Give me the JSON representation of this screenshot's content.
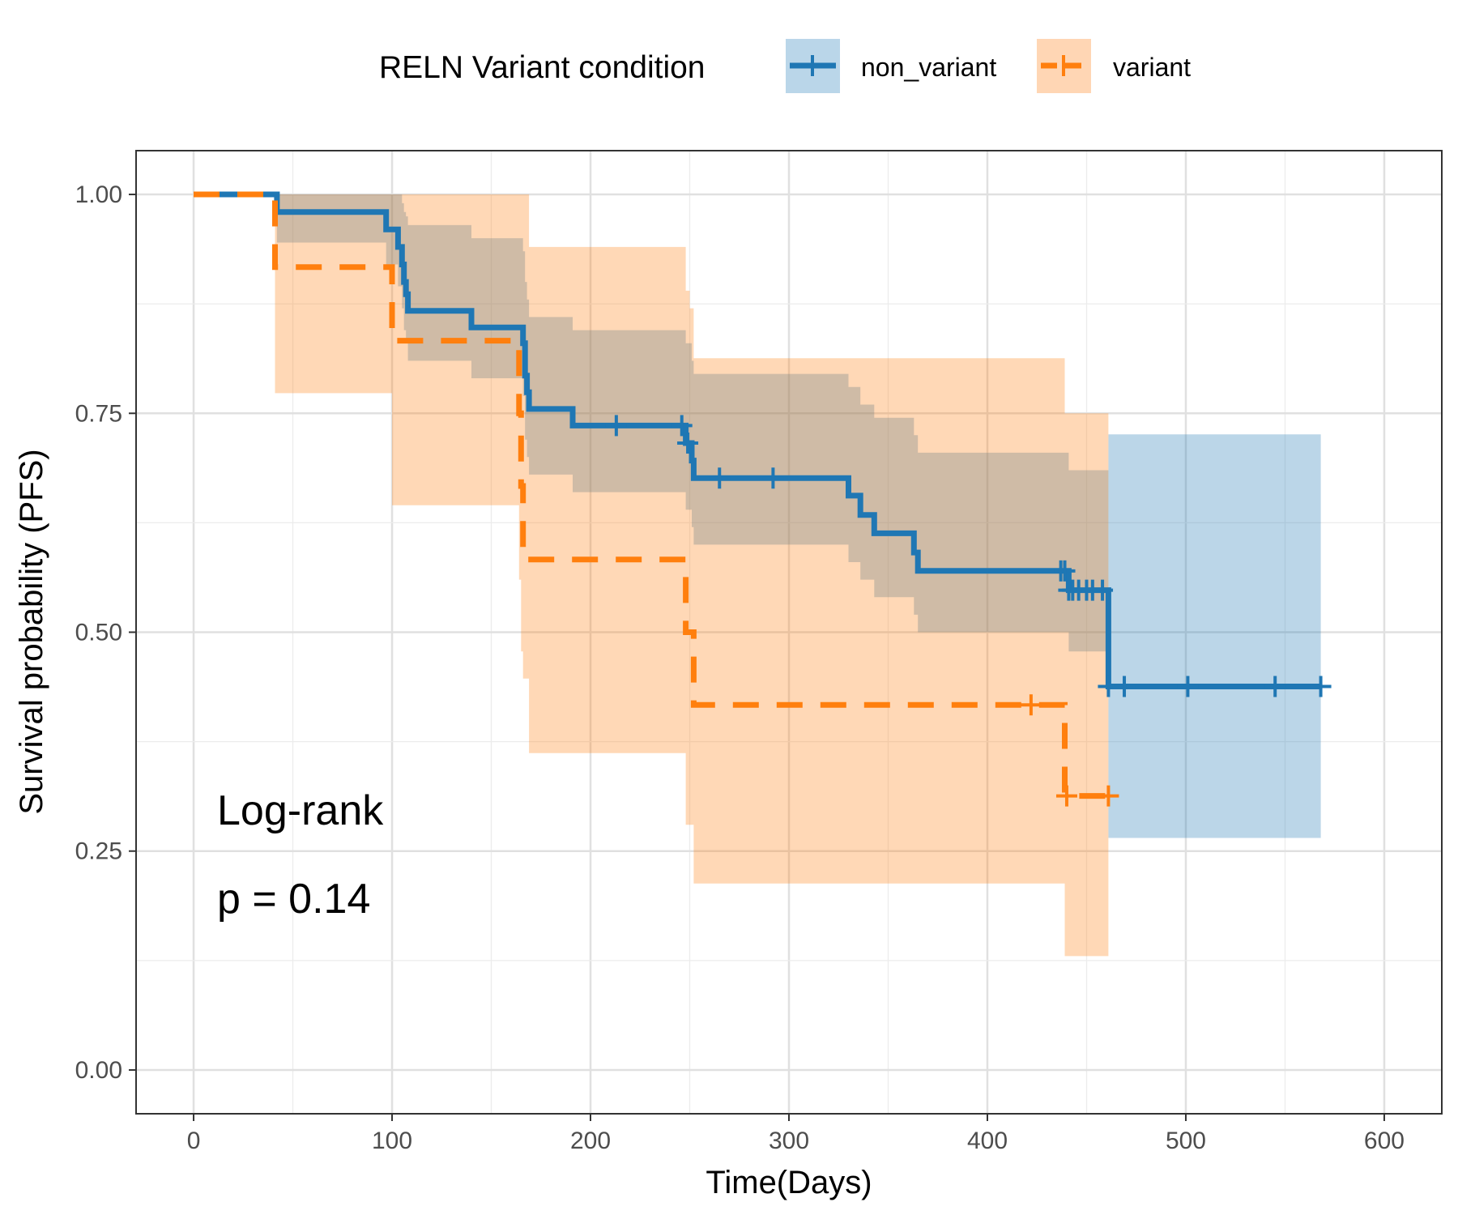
{
  "chart_data": {
    "type": "line",
    "subtype": "kaplan-meier step curve with confidence bands",
    "xlabel": "Time(Days)",
    "ylabel": "Survival probability (PFS)",
    "xlim": [
      -29,
      629
    ],
    "ylim": [
      -0.05,
      1.05
    ],
    "x_ticks": [
      0,
      100,
      200,
      300,
      400,
      500,
      600
    ],
    "x_tick_labels": [
      "0",
      "100",
      "200",
      "300",
      "400",
      "500",
      "600"
    ],
    "y_ticks": [
      0,
      0.25,
      0.5,
      0.75,
      1
    ],
    "y_tick_labels": [
      "0.00",
      "0.25",
      "0.50",
      "0.75",
      "1.00"
    ],
    "grid": true,
    "legend": {
      "title": "RELN Variant condition",
      "position": "top",
      "entries": [
        {
          "label": "non_variant",
          "color": "#1f77b4",
          "fill": "#bad6e9",
          "dash": "solid"
        },
        {
          "label": "variant",
          "color": "#ff7f0e",
          "fill": "#ffd6b4",
          "dash": "dashed"
        }
      ]
    },
    "annotations": [
      "Log-rank",
      "p = 0.14"
    ],
    "series": [
      {
        "name": "non_variant",
        "color": "#1f77b4",
        "band_color": "#1f77b4",
        "band_opacity": 0.3,
        "dash": "solid",
        "steps": [
          [
            0,
            1.0,
            1.0,
            1.0
          ],
          [
            42,
            0.98,
            1.0,
            0.945
          ],
          [
            97,
            0.96,
            1.0,
            0.92
          ],
          [
            103,
            0.94,
            1.0,
            0.895
          ],
          [
            105,
            0.92,
            0.99,
            0.87
          ],
          [
            106,
            0.9,
            0.98,
            0.845
          ],
          [
            107,
            0.886,
            0.975,
            0.83
          ],
          [
            108,
            0.867,
            0.965,
            0.81
          ],
          [
            140,
            0.848,
            0.95,
            0.79
          ],
          [
            166,
            0.83,
            0.935,
            0.77
          ],
          [
            167,
            0.793,
            0.9,
            0.72
          ],
          [
            168,
            0.774,
            0.88,
            0.7
          ],
          [
            169,
            0.755,
            0.86,
            0.68
          ],
          [
            191,
            0.736,
            0.845,
            0.66
          ],
          [
            248,
            0.716,
            0.83,
            0.64
          ],
          [
            251,
            0.696,
            0.81,
            0.62
          ],
          [
            252,
            0.676,
            0.795,
            0.6
          ],
          [
            330,
            0.656,
            0.78,
            0.58
          ],
          [
            336,
            0.634,
            0.76,
            0.56
          ],
          [
            343,
            0.613,
            0.745,
            0.54
          ],
          [
            363,
            0.591,
            0.725,
            0.52
          ],
          [
            365,
            0.57,
            0.705,
            0.5
          ],
          [
            441,
            0.548,
            0.685,
            0.478
          ],
          [
            461,
            0.438,
            0.726,
            0.265
          ]
        ],
        "end_x": 568,
        "censor_times": [
          213,
          246,
          249,
          265,
          292,
          437,
          439,
          441,
          443,
          446,
          450,
          453,
          458,
          461,
          469,
          501,
          545,
          568
        ]
      },
      {
        "name": "variant",
        "color": "#ff7f0e",
        "band_color": "#ff7f0e",
        "band_opacity": 0.3,
        "dash": "dashed",
        "steps": [
          [
            0,
            1.0,
            1.0,
            1.0
          ],
          [
            41,
            0.917,
            1.0,
            0.773
          ],
          [
            100,
            0.833,
            1.0,
            0.645
          ],
          [
            164,
            0.75,
            1.0,
            0.56
          ],
          [
            165,
            0.667,
            1.0,
            0.478
          ],
          [
            166,
            0.583,
            1.0,
            0.447
          ],
          [
            169,
            0.583,
            0.94,
            0.362
          ],
          [
            248,
            0.5,
            0.89,
            0.28
          ],
          [
            250,
            0.5,
            0.87,
            0.28
          ],
          [
            252,
            0.417,
            0.813,
            0.213
          ],
          [
            439,
            0.313,
            0.75,
            0.13
          ]
        ],
        "end_x": 461,
        "censor_times": [
          422,
          440,
          461
        ]
      }
    ]
  }
}
